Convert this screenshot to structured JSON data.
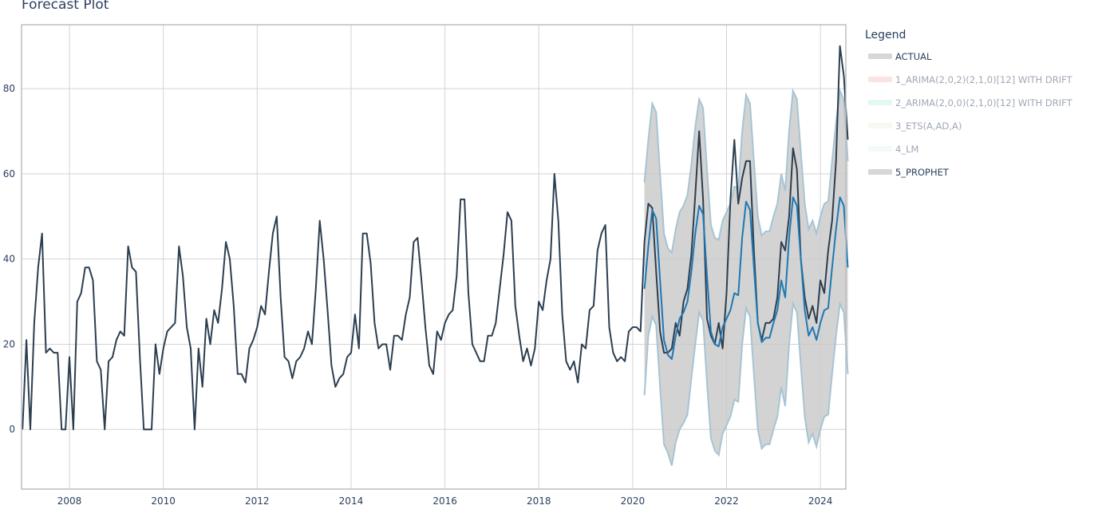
{
  "chart_data": {
    "type": "line",
    "title": "Forecast Plot",
    "xlabel": "",
    "ylabel": "",
    "xlim": [
      "2007-01",
      "2024-07"
    ],
    "ylim": [
      -14,
      95
    ],
    "grid": true,
    "x_ticks": [
      "2008",
      "2010",
      "2012",
      "2014",
      "2016",
      "2018",
      "2020",
      "2022",
      "2024"
    ],
    "y_ticks": [
      "0",
      "20",
      "40",
      "60",
      "80"
    ],
    "legend": {
      "title": "Legend",
      "placement": "right",
      "items": [
        {
          "label": "ACTUAL",
          "color": "#2c3e50",
          "active": true
        },
        {
          "label": "1_ARIMA(2,0,2)(2,1,0)[12] WITH DRIFT",
          "color": "#e31a1c",
          "active": false
        },
        {
          "label": "2_ARIMA(2,0,0)(2,1,0)[12] WITH DRIFT",
          "color": "#18bc9c",
          "active": false
        },
        {
          "label": "3_ETS(A,AD,A)",
          "color": "#ccbe93",
          "active": false
        },
        {
          "label": "4_LM",
          "color": "#a6cee3",
          "active": false
        },
        {
          "label": "5_PROPHET",
          "color": "#1f78b4",
          "active": true
        }
      ]
    },
    "actual": {
      "name": "ACTUAL",
      "start": "2007-01",
      "values": [
        0,
        21,
        0,
        25,
        38,
        46,
        18,
        19,
        18,
        18,
        0,
        0,
        17,
        0,
        30,
        32,
        38,
        38,
        35,
        16,
        14,
        0,
        16,
        17,
        21,
        23,
        22,
        43,
        38,
        37,
        17,
        0,
        0,
        0,
        20,
        13,
        19,
        23,
        24,
        25,
        43,
        36,
        24,
        19,
        0,
        19,
        10,
        26,
        20,
        28,
        25,
        33,
        44,
        40,
        29,
        13,
        13,
        11,
        19,
        21,
        24,
        29,
        27,
        37,
        46,
        50,
        31,
        17,
        16,
        12,
        16,
        17,
        19,
        23,
        20,
        33,
        49,
        40,
        28,
        15,
        10,
        12,
        13,
        17,
        18,
        27,
        19,
        46,
        46,
        39,
        25,
        19,
        20,
        20,
        14,
        22,
        22,
        21,
        27,
        31,
        44,
        45,
        35,
        24,
        15,
        13,
        23,
        21,
        25,
        27,
        28,
        36,
        54,
        54,
        32,
        20,
        18,
        16,
        16,
        22,
        22,
        25,
        33,
        41,
        51,
        49,
        29,
        22,
        16,
        19,
        15,
        19,
        30,
        28,
        35,
        40,
        60,
        49,
        27,
        16,
        14,
        16,
        11,
        20,
        19,
        28,
        29,
        42,
        46,
        48,
        24,
        18,
        16,
        17,
        16,
        23,
        24,
        24,
        23,
        44,
        53,
        52,
        37,
        23,
        18,
        18,
        19,
        25,
        22,
        30,
        33,
        41,
        55,
        70,
        54,
        26,
        22,
        20,
        25,
        19,
        32,
        54,
        68,
        53,
        59,
        63,
        63,
        42,
        25,
        21,
        25,
        25,
        26,
        31,
        44,
        42,
        50,
        66,
        61,
        40,
        31,
        26,
        29,
        25,
        35,
        32,
        42,
        49,
        63,
        90,
        83,
        68
      ]
    },
    "forecast": {
      "name": "5_PROPHET",
      "start": "2020-04",
      "values": [
        33,
        43,
        51.5,
        49.5,
        35,
        21,
        17.5,
        16.5,
        22,
        26,
        27.5,
        30,
        37,
        46,
        52.5,
        50.5,
        36,
        23,
        20,
        19.5,
        24,
        26,
        28,
        32,
        31.5,
        45,
        53.5,
        51.5,
        38,
        25,
        20.5,
        21.5,
        21.5,
        25,
        28,
        35,
        31,
        45,
        54.5,
        52.5,
        40,
        28,
        22,
        24,
        21,
        25,
        28,
        28.5,
        38,
        47,
        54.5,
        52.5,
        38
      ],
      "lo95": [
        8,
        22,
        26.5,
        24.5,
        10,
        -3.5,
        -5.5,
        -8.5,
        -3,
        0,
        1.5,
        3.5,
        12,
        20,
        27.5,
        25.5,
        11,
        -2,
        -5,
        -6,
        -1,
        1,
        3,
        7,
        6.5,
        20,
        28.5,
        26.5,
        13,
        0,
        -4.5,
        -3.5,
        -3.5,
        0,
        3,
        10,
        5.5,
        20,
        29.5,
        27.5,
        15,
        3,
        -3,
        -1,
        -4,
        0,
        3,
        3.5,
        13,
        22,
        29.5,
        27.5,
        13
      ],
      "hi95": [
        58,
        68,
        76.5,
        74.5,
        60,
        46,
        42.5,
        41.5,
        47,
        51,
        52.5,
        55,
        62,
        71,
        77.5,
        75.5,
        61,
        48,
        45,
        44.5,
        49,
        51,
        53,
        57,
        56.5,
        70,
        78.5,
        76.5,
        63,
        50,
        45.5,
        46.5,
        46.5,
        50,
        53,
        60,
        56,
        70,
        79.5,
        77.5,
        65,
        53,
        47,
        49,
        46,
        50,
        53,
        53.5,
        63,
        72,
        79.5,
        77.5,
        63
      ]
    }
  }
}
